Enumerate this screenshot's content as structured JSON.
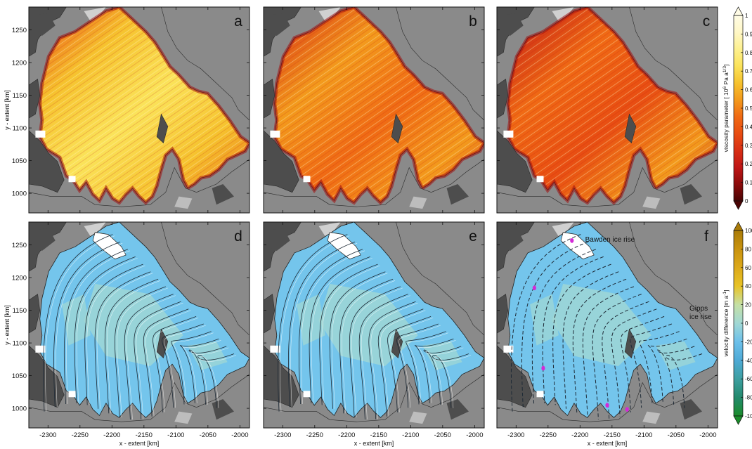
{
  "chart_data": [
    {
      "type": "heatmap",
      "panel_label": "a",
      "xlabel": "",
      "ylabel": "y - extent [km]",
      "xlim": [
        -2330,
        -1985
      ],
      "ylim": [
        970,
        1285
      ],
      "xticks": [
        -2300,
        -2250,
        -2200,
        -2150,
        -2100,
        -2050,
        -2000
      ],
      "yticks": [
        1000,
        1050,
        1100,
        1150,
        1200,
        1250
      ],
      "show_xticklabels": false,
      "show_yticklabels": true,
      "field": "viscosity",
      "variant": "bright"
    },
    {
      "type": "heatmap",
      "panel_label": "b",
      "xlabel": "",
      "ylabel": "",
      "xlim": [
        -2330,
        -1985
      ],
      "ylim": [
        970,
        1285
      ],
      "xticks": [
        -2300,
        -2250,
        -2200,
        -2150,
        -2100,
        -2050,
        -2000
      ],
      "yticks": [
        1000,
        1050,
        1100,
        1150,
        1200,
        1250
      ],
      "show_xticklabels": false,
      "show_yticklabels": false,
      "field": "viscosity",
      "variant": "medium"
    },
    {
      "type": "heatmap",
      "panel_label": "c",
      "xlabel": "",
      "ylabel": "",
      "xlim": [
        -2330,
        -1985
      ],
      "ylim": [
        970,
        1285
      ],
      "xticks": [
        -2300,
        -2250,
        -2200,
        -2150,
        -2100,
        -2050,
        -2000
      ],
      "yticks": [
        1000,
        1050,
        1100,
        1150,
        1200,
        1250
      ],
      "show_xticklabels": false,
      "show_yticklabels": false,
      "field": "viscosity",
      "variant": "dark"
    },
    {
      "type": "heatmap",
      "panel_label": "d",
      "xlabel": "x - extent [km]",
      "ylabel": "y - extent [km]",
      "xlim": [
        -2330,
        -1985
      ],
      "ylim": [
        970,
        1285
      ],
      "xticks": [
        -2300,
        -2250,
        -2200,
        -2150,
        -2100,
        -2050,
        -2000
      ],
      "yticks": [
        1000,
        1050,
        1100,
        1150,
        1200,
        1250
      ],
      "show_xticklabels": true,
      "show_yticklabels": true,
      "field": "velocity",
      "streamline_style": "solid"
    },
    {
      "type": "heatmap",
      "panel_label": "e",
      "xlabel": "x - extent [km]",
      "ylabel": "",
      "xlim": [
        -2330,
        -1985
      ],
      "ylim": [
        970,
        1285
      ],
      "xticks": [
        -2300,
        -2250,
        -2200,
        -2150,
        -2100,
        -2050,
        -2000
      ],
      "yticks": [
        1000,
        1050,
        1100,
        1150,
        1200,
        1250
      ],
      "show_xticklabels": true,
      "show_yticklabels": false,
      "field": "velocity",
      "streamline_style": "solid"
    },
    {
      "type": "heatmap",
      "panel_label": "f",
      "xlabel": "x - extent [km]",
      "ylabel": "",
      "xlim": [
        -2330,
        -1985
      ],
      "ylim": [
        970,
        1285
      ],
      "xticks": [
        -2300,
        -2250,
        -2200,
        -2150,
        -2100,
        -2050,
        -2000
      ],
      "yticks": [
        1000,
        1050,
        1100,
        1150,
        1200,
        1250
      ],
      "show_xticklabels": true,
      "show_yticklabels": false,
      "field": "velocity",
      "streamline_style": "dashed",
      "annotations": [
        "Bawden ice rise",
        "Gipps",
        "ice rise"
      ]
    }
  ],
  "colorbars": [
    {
      "label": "viscosity parameter [ 10",
      "label_superscript": "6",
      "label_unit_mid": " Pa  a",
      "label_unit_superscript": "1/3",
      "label_suffix": "]",
      "ticks": [
        "0",
        "0.1",
        "0.2",
        "0.3",
        "0.4",
        "0.5",
        "0.6",
        "0.7",
        "0.8",
        "0.9",
        "1"
      ],
      "range": [
        0,
        1
      ],
      "colors": [
        "#4a0505",
        "#8c0b0b",
        "#c01616",
        "#d82f14",
        "#e84d12",
        "#f06a14",
        "#f39a1c",
        "#f6c22e",
        "#fbe35a",
        "#fdf08e",
        "#fff7c6",
        "#fffce6"
      ]
    },
    {
      "label": "velocity difference [m a",
      "label_superscript": "-1",
      "label_suffix": "]",
      "ticks": [
        "-100",
        "-80",
        "-60",
        "-40",
        "-20",
        "0",
        "20",
        "40",
        "60",
        "80",
        "100"
      ],
      "range": [
        -100,
        100
      ],
      "colors": [
        "#1a8c2a",
        "#238a6d",
        "#3d9fa1",
        "#4eaad6",
        "#6cc0ea",
        "#a1d8d4",
        "#c5e0a5",
        "#e8c326",
        "#dca91a",
        "#c9930f",
        "#a97b08"
      ]
    }
  ],
  "palette": {
    "rock_dark": "#4d4d4d",
    "rock_mid": "#8a8a8a",
    "rock_light": "#bdbdbd",
    "land_pale": "#d0d0d0",
    "ice_white": "#ffffff",
    "shelf_blue": "#74c5ec",
    "shelf_teal": "#a4d8d3",
    "ice_rise_yellow": "#e6c62f",
    "residual_magenta": "#d32ad6"
  }
}
